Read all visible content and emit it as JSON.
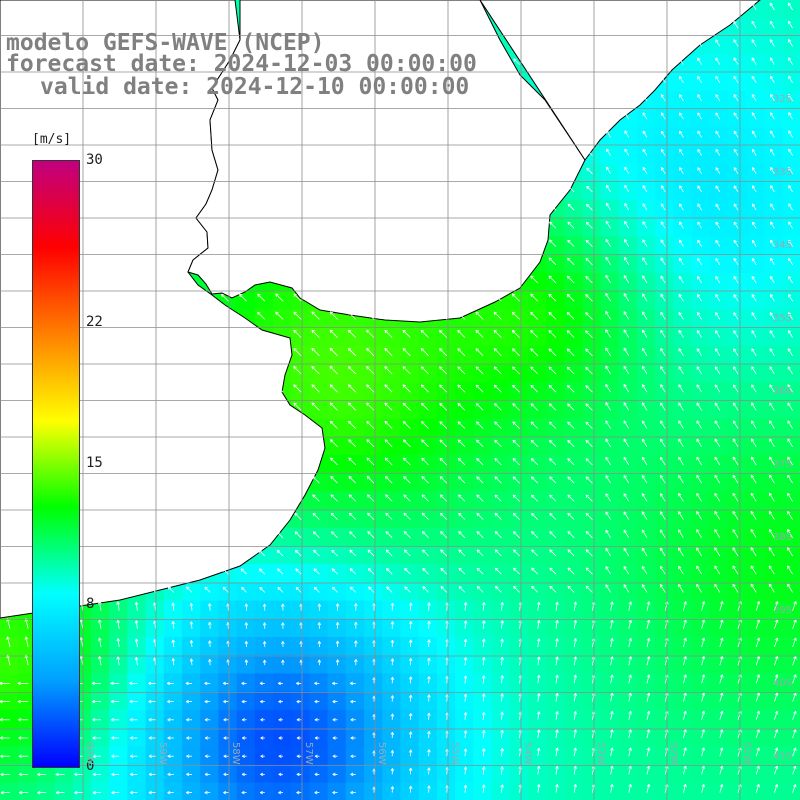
{
  "title": {
    "line1": "modelo GEFS-WAVE (NCEP)",
    "line2": "forecast date: 2024-12-03 00:00:00",
    "line3": "valid date: 2024-12-10 00:00:00"
  },
  "colorbar": {
    "unit": "[m/s]",
    "ticks": [
      "30",
      "22",
      "15",
      "8",
      "0"
    ],
    "tick_values": [
      30,
      22,
      15,
      8,
      0
    ],
    "min": 0,
    "max": 30,
    "colors": [
      "#0000ff",
      "#00a0ff",
      "#00ffff",
      "#00ff00",
      "#ffff00",
      "#ff8000",
      "#ff0000",
      "#c00080"
    ]
  },
  "axes": {
    "lat_labels": [
      "32S",
      "33S",
      "34S",
      "35S",
      "36S",
      "37S",
      "38S",
      "39S",
      "40S",
      "41S"
    ],
    "lon_labels": [
      "60W",
      "59W",
      "58W",
      "57W",
      "56W",
      "55W",
      "54W",
      "53W",
      "52W",
      "51W"
    ]
  },
  "map": {
    "land_color": "#ffffff",
    "coast_color": "#000000",
    "grid_color": "#8c8c8c",
    "arrow_color": "#ffffff",
    "field": "wind speed"
  }
}
